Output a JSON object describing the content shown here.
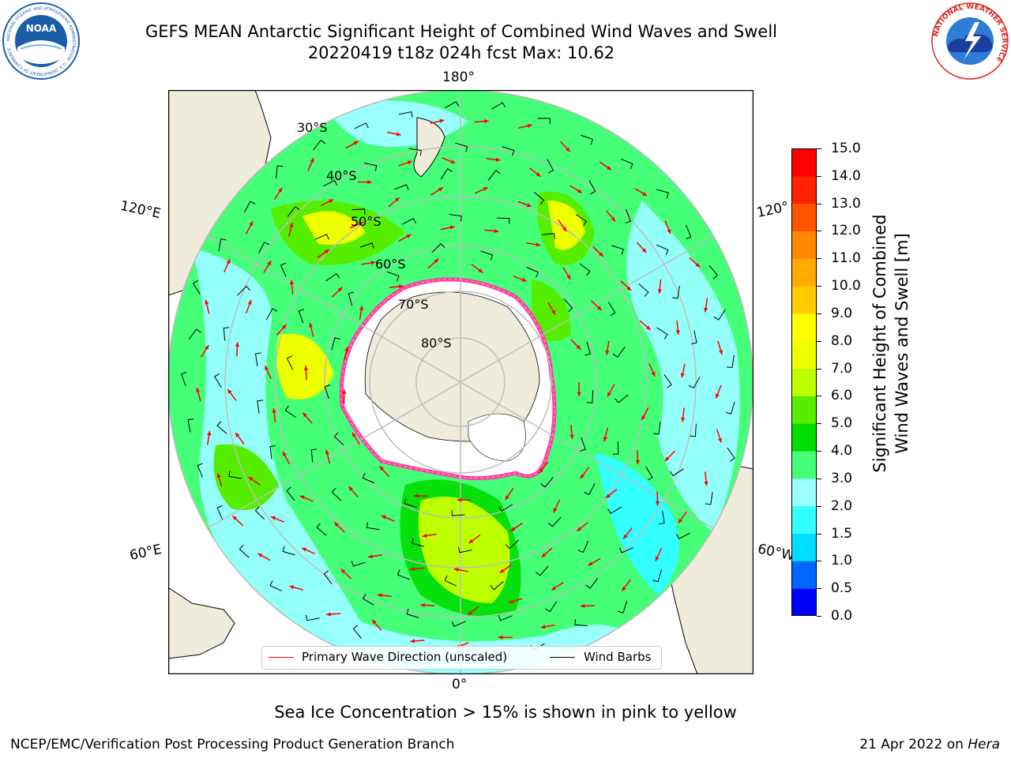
{
  "title": {
    "line1": "GEFS MEAN Antarctic Significant Height of Combined Wind Waves and Swell",
    "line2": "20220419 t18z 024h fcst   Max: 10.62"
  },
  "logos": {
    "left": {
      "name": "noaa-logo",
      "text": "NOAA",
      "ring_text": "NATIONAL OCEANIC AND ATMOSPHERIC ADMINISTRATION · U.S. DEPARTMENT OF COMMERCE",
      "color": "#1a5ea8"
    },
    "right": {
      "name": "nws-logo",
      "ring_text": "NATIONAL WEATHER SERVICE",
      "color": "#e0261e"
    }
  },
  "map": {
    "projection": "south-polar-stereographic",
    "longitude_labels": [
      "180°",
      "120°E",
      "120°",
      "60°E",
      "60°W",
      "0°"
    ],
    "latitude_labels": [
      "30°S",
      "40°S",
      "50°S",
      "60°S",
      "70°S",
      "80°S"
    ],
    "colors": {
      "land": "#efecdc",
      "ice_edge": "#ff33cc",
      "ice_inner": "#ffaa00",
      "graticule": "#bdbdbd"
    }
  },
  "colorbar": {
    "label_line1": "Significant Height of Combined",
    "label_line2": "Wind Waves and Swell [m]",
    "ticks": [
      "15.0",
      "14.0",
      "13.0",
      "12.0",
      "11.0",
      "10.0",
      "9.0",
      "8.0",
      "7.0",
      "6.0",
      "5.0",
      "4.0",
      "3.0",
      "2.0",
      "1.5",
      "1.0",
      "0.5",
      "0.0"
    ],
    "levels": [
      0,
      0.5,
      1,
      1.5,
      2,
      3,
      4,
      5,
      6,
      7,
      8,
      9,
      10,
      11,
      12,
      13,
      14,
      15
    ],
    "colors": [
      "#0000ff",
      "#0066ff",
      "#00ddff",
      "#33ffff",
      "#99ffff",
      "#44ff77",
      "#00dd00",
      "#55ee00",
      "#bbff00",
      "#eeff00",
      "#ffff00",
      "#ffcc00",
      "#ffaa00",
      "#ff8800",
      "#ff5500",
      "#ff2200",
      "#ff0000"
    ]
  },
  "legend": {
    "items": [
      {
        "label": "Primary Wave Direction (unscaled)",
        "color": "#ff0000"
      },
      {
        "label": "Wind Barbs",
        "color": "#000000"
      }
    ]
  },
  "subtitle": "Sea Ice Concentration > 15% is shown in pink to yellow",
  "footer": {
    "left": "NCEP/EMC/Verification Post Processing Product Generation Branch",
    "right_date": "21 Apr 2022 on ",
    "right_host": "Hera"
  }
}
